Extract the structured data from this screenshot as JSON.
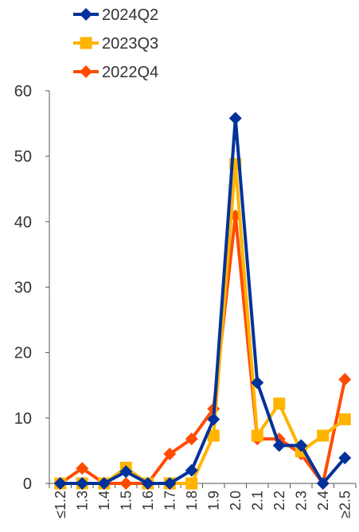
{
  "chart_data": {
    "type": "line",
    "title": "",
    "xlabel": "",
    "ylabel": "",
    "categories": [
      "≤1.2",
      "1.3",
      "1.4",
      "1.5",
      "1.6",
      "1.7",
      "1.8",
      "1.9",
      "2.0",
      "2.1",
      "2.2",
      "2.3",
      "2.4",
      "≥2.5"
    ],
    "ylim": [
      0,
      60
    ],
    "yticks": [
      "0",
      "10",
      "20",
      "30",
      "40",
      "50",
      "60"
    ],
    "legend_position": "top-left",
    "grid": false,
    "series": [
      {
        "name": "2024Q2",
        "color": "#003299",
        "marker": "diamond",
        "values": [
          0,
          0,
          0,
          1.8,
          0,
          0,
          2,
          9.8,
          55.8,
          15.4,
          5.8,
          5.8,
          0,
          3.9
        ]
      },
      {
        "name": "2023Q3",
        "color": "#FFB400",
        "marker": "square",
        "values": [
          0,
          0,
          0,
          2.4,
          0,
          0,
          0,
          7.3,
          48.8,
          7.3,
          12.2,
          4.9,
          7.3,
          9.8
        ]
      },
      {
        "name": "2022Q4",
        "color": "#FF4B00",
        "marker": "diamond",
        "values": [
          0,
          2.3,
          0,
          0,
          0,
          4.5,
          6.8,
          11.4,
          40.9,
          6.8,
          6.8,
          4.5,
          0,
          15.9
        ]
      }
    ]
  }
}
